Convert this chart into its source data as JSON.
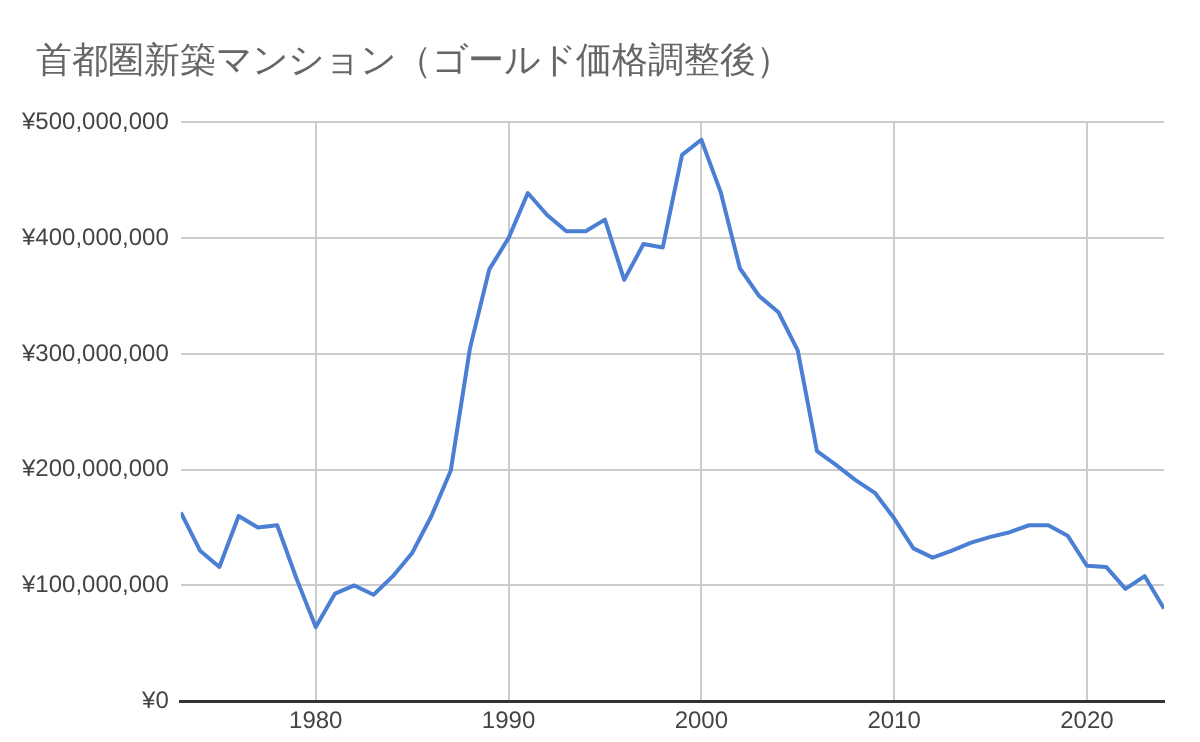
{
  "chart_data": {
    "type": "line",
    "title": "首都圏新築マンション（ゴールド価格調整後）",
    "x": [
      1973,
      1974,
      1975,
      1976,
      1977,
      1978,
      1979,
      1980,
      1981,
      1982,
      1983,
      1984,
      1985,
      1986,
      1987,
      1988,
      1989,
      1990,
      1991,
      1992,
      1993,
      1994,
      1995,
      1996,
      1997,
      1998,
      1999,
      2000,
      2001,
      2002,
      2003,
      2004,
      2005,
      2006,
      2007,
      2008,
      2009,
      2010,
      2011,
      2012,
      2013,
      2014,
      2015,
      2016,
      2017,
      2018,
      2019,
      2020,
      2021,
      2022,
      2023,
      2024
    ],
    "series": [
      {
        "color": "#4a7fd4",
        "values": [
          163000000,
          130000000,
          116000000,
          160000000,
          150000000,
          152000000,
          106000000,
          64000000,
          93000000,
          100000000,
          92000000,
          108000000,
          128000000,
          160000000,
          199000000,
          305000000,
          373000000,
          400000000,
          439000000,
          420000000,
          406000000,
          406000000,
          416000000,
          364000000,
          395000000,
          392000000,
          472000000,
          485000000,
          440000000,
          374000000,
          350000000,
          336000000,
          303000000,
          216000000,
          204000000,
          191000000,
          180000000,
          158000000,
          132000000,
          124000000,
          130000000,
          137000000,
          142000000,
          146000000,
          152000000,
          152000000,
          143000000,
          117000000,
          116000000,
          97000000,
          108000000,
          80000000
        ]
      }
    ],
    "xlim": [
      1973,
      2024
    ],
    "xticks": [
      1980,
      1990,
      2000,
      2010,
      2020
    ],
    "ylim": [
      0,
      500000000
    ],
    "yticks": [
      {
        "value": 0,
        "label": "¥0"
      },
      {
        "value": 100000000,
        "label": "¥100,000,000"
      },
      {
        "value": 200000000,
        "label": "¥200,000,000"
      },
      {
        "value": 300000000,
        "label": "¥300,000,000"
      },
      {
        "value": 400000000,
        "label": "¥400,000,000"
      },
      {
        "value": 500000000,
        "label": "¥500,000,000"
      }
    ],
    "grid": true,
    "marker": "none",
    "line_style": "solid"
  }
}
